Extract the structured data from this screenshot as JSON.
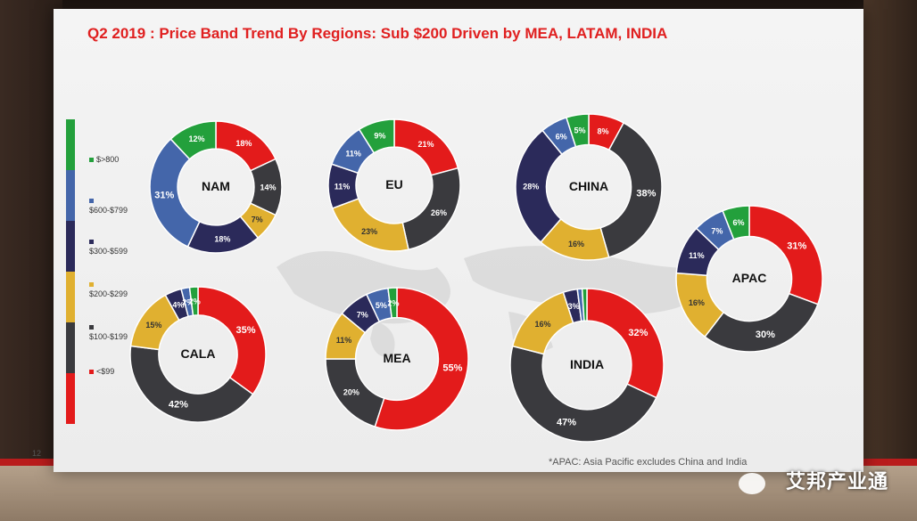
{
  "slide": {
    "title": "Q2 2019 : Price Band Trend By Regions: Sub $200 Driven by MEA, LATAM, INDIA",
    "page_number": "12",
    "footnote": "*APAC: Asia Pacific excludes China and India"
  },
  "legend": [
    {
      "label": "$>800",
      "color": "#23a03c"
    },
    {
      "label": "$600-$799",
      "color": "#4466aa"
    },
    {
      "label": "$300-$599",
      "color": "#2b2a5a"
    },
    {
      "label": "$200-$299",
      "color": "#e0b030"
    },
    {
      "label": "$100-$199",
      "color": "#3a3a3e"
    },
    {
      "label": "<$99",
      "color": "#e31b1b"
    }
  ],
  "watermark": "艾邦产业通",
  "chart_data": {
    "type": "pie",
    "categories": [
      "<$99",
      "$100-$199",
      "$200-$299",
      "$300-$599",
      "$600-$799",
      "$>800"
    ],
    "donuts": [
      {
        "region": "NAM",
        "values": [
          18,
          14,
          7,
          18,
          31,
          12
        ],
        "labels": [
          "18%",
          "14%",
          "7%",
          "18%",
          "31%",
          "12%"
        ]
      },
      {
        "region": "EU",
        "values": [
          21,
          26,
          23,
          11,
          11,
          9
        ],
        "labels": [
          "21%",
          "26%",
          "23%",
          "11%",
          "11%",
          "9%"
        ]
      },
      {
        "region": "CHINA",
        "values": [
          8,
          38,
          16,
          28,
          6,
          5
        ],
        "labels": [
          "8%",
          "38%",
          "16%",
          "28%",
          "6%",
          "5%"
        ]
      },
      {
        "region": "APAC",
        "values": [
          31,
          30,
          16,
          11,
          7,
          6
        ],
        "labels": [
          "31%",
          "30%",
          "16%",
          "11%",
          "7%",
          "6%"
        ]
      },
      {
        "region": "CALA",
        "values": [
          35,
          42,
          15,
          4,
          2,
          2
        ],
        "labels": [
          "35%",
          "42%",
          "15%",
          "4%",
          "2%",
          "2%"
        ]
      },
      {
        "region": "MEA",
        "values": [
          55,
          20,
          11,
          7,
          5,
          2
        ],
        "labels": [
          "55%",
          "20%",
          "11%",
          "7%",
          "5%",
          "2%"
        ]
      },
      {
        "region": "INDIA",
        "values": [
          32,
          47,
          16,
          3,
          1,
          1
        ],
        "labels": [
          "32%",
          "47%",
          "16%",
          "3%",
          "",
          ""
        ]
      }
    ]
  }
}
